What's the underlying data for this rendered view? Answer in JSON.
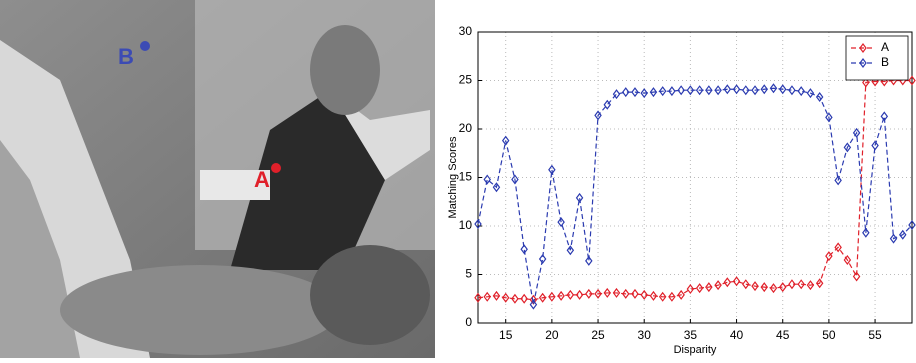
{
  "image_annotations": [
    {
      "label": "B",
      "color": "#3c4bb4"
    },
    {
      "label": "A",
      "color": "#e0202a"
    }
  ],
  "chart_data": {
    "type": "line",
    "xlabel": "Disparity",
    "ylabel": "Matching Scores",
    "x": [
      12,
      13,
      14,
      15,
      16,
      17,
      18,
      19,
      20,
      21,
      22,
      23,
      24,
      25,
      26,
      27,
      28,
      29,
      30,
      31,
      32,
      33,
      34,
      35,
      36,
      37,
      38,
      39,
      40,
      41,
      42,
      43,
      44,
      45,
      46,
      47,
      48,
      49,
      50,
      51,
      52,
      53,
      54,
      55,
      56,
      57,
      58,
      59
    ],
    "series": [
      {
        "name": "A",
        "color": "#e0202a",
        "values": [
          2.6,
          2.7,
          2.8,
          2.6,
          2.5,
          2.5,
          2.4,
          2.6,
          2.7,
          2.8,
          2.9,
          2.9,
          3.0,
          3.0,
          3.1,
          3.1,
          3.0,
          3.0,
          2.9,
          2.8,
          2.7,
          2.7,
          2.9,
          3.5,
          3.6,
          3.7,
          3.9,
          4.2,
          4.3,
          4.0,
          3.8,
          3.7,
          3.6,
          3.7,
          4.0,
          4.0,
          3.9,
          4.1,
          6.9,
          7.8,
          6.5,
          4.8,
          24.8,
          24.9,
          24.9,
          25.0,
          25.0,
          25.0
        ]
      },
      {
        "name": "B",
        "color": "#2b3bb0",
        "values": [
          10.2,
          14.8,
          14.0,
          18.8,
          14.8,
          7.6,
          1.9,
          6.6,
          15.8,
          10.4,
          7.5,
          12.9,
          6.4,
          21.4,
          22.5,
          23.6,
          23.8,
          23.8,
          23.7,
          23.8,
          23.9,
          23.9,
          24.0,
          24.0,
          24.0,
          24.0,
          24.0,
          24.1,
          24.1,
          24.0,
          24.0,
          24.1,
          24.2,
          24.1,
          24.0,
          23.9,
          23.7,
          23.3,
          21.2,
          14.7,
          18.1,
          19.6,
          9.3,
          18.3,
          21.3,
          8.7,
          9.1,
          10.1
        ]
      }
    ],
    "xlim": [
      12,
      59
    ],
    "ylim": [
      0,
      30
    ],
    "xticks": [
      15,
      20,
      25,
      30,
      35,
      40,
      45,
      50,
      55
    ],
    "yticks": [
      0,
      5,
      10,
      15,
      20,
      25,
      30
    ],
    "grid": true,
    "legend": "upper right"
  }
}
